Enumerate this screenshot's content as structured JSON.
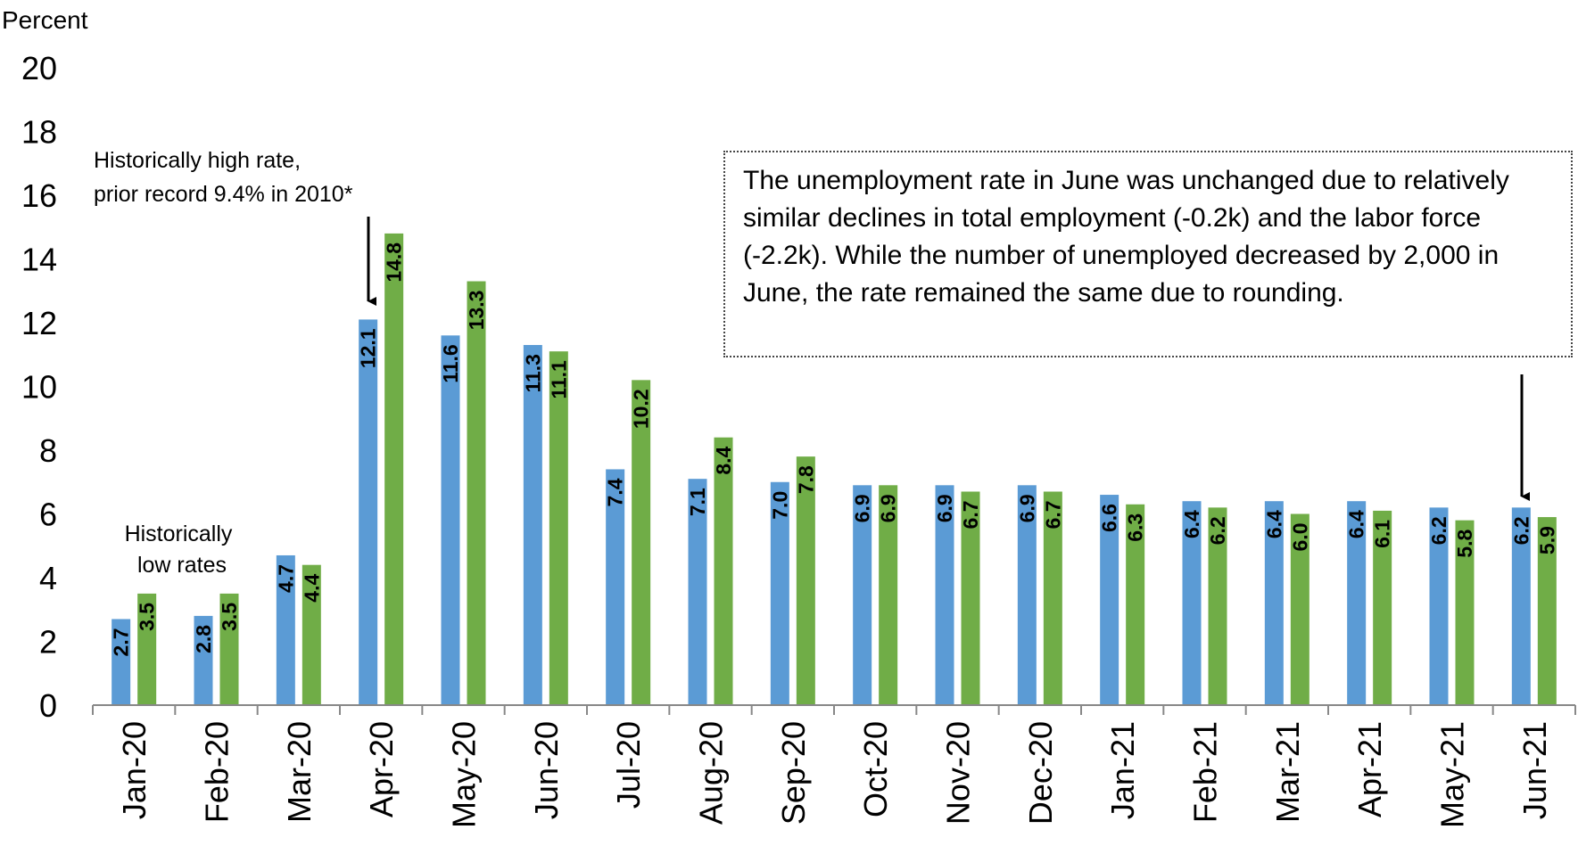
{
  "chart_data": {
    "type": "bar",
    "ylabel": "Percent",
    "ylim": [
      0,
      20
    ],
    "yticks": [
      0,
      2,
      4,
      6,
      8,
      10,
      12,
      14,
      16,
      18,
      20
    ],
    "categories": [
      "Jan-20",
      "Feb-20",
      "Mar-20",
      "Apr-20",
      "May-20",
      "Jun-20",
      "Jul-20",
      "Aug-20",
      "Sep-20",
      "Oct-20",
      "Nov-20",
      "Dec-20",
      "Jan-21",
      "Feb-21",
      "Mar-21",
      "Apr-21",
      "May-21",
      "Jun-21"
    ],
    "series": [
      {
        "color": "#5B9BD5",
        "values": [
          2.7,
          2.8,
          4.7,
          12.1,
          11.6,
          11.3,
          7.4,
          7.1,
          7.0,
          6.9,
          6.9,
          6.9,
          6.6,
          6.4,
          6.4,
          6.4,
          6.2,
          6.2
        ]
      },
      {
        "color": "#70AD47",
        "values": [
          3.5,
          3.5,
          4.4,
          14.8,
          13.3,
          11.1,
          10.2,
          8.4,
          7.8,
          6.9,
          6.7,
          6.7,
          6.3,
          6.2,
          6.0,
          6.1,
          5.8,
          5.9
        ]
      }
    ],
    "grid": false,
    "legend": "none",
    "annotations": {
      "low_rates": [
        "Historically",
        "low rates"
      ],
      "high_rate": [
        "Historically high rate,",
        "prior record 9.4% in 2010*"
      ],
      "note": "The unemployment rate in June was unchanged due to relatively similar declines in total employment (-0.2k) and the labor force (-2.2k). While the number of unemployed decreased by 2,000 in June, the rate remained the same due to rounding."
    }
  }
}
